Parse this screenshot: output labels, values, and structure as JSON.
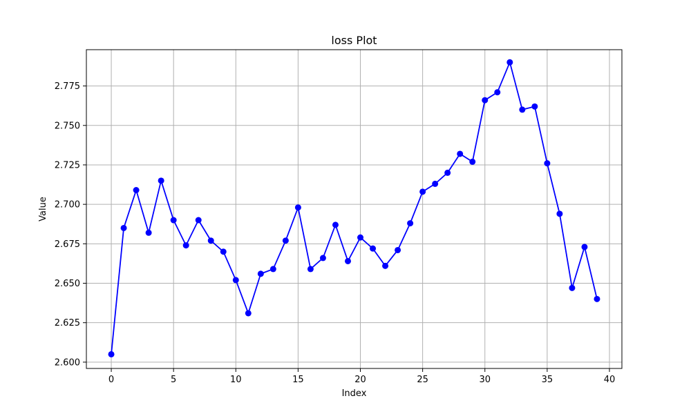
{
  "chart_data": {
    "type": "line",
    "title": "loss Plot",
    "xlabel": "Index",
    "ylabel": "Value",
    "xlim": [
      -2.0,
      41.0
    ],
    "ylim": [
      2.596,
      2.798
    ],
    "xticks": [
      0,
      5,
      10,
      15,
      20,
      25,
      30,
      35,
      40
    ],
    "yticks": [
      2.6,
      2.625,
      2.65,
      2.675,
      2.7,
      2.725,
      2.75,
      2.775
    ],
    "ytick_labels": [
      "2.600",
      "2.625",
      "2.650",
      "2.675",
      "2.700",
      "2.725",
      "2.750",
      "2.775"
    ],
    "grid": true,
    "color": "#0000ff",
    "marker": "circle",
    "x": [
      0,
      1,
      2,
      3,
      4,
      5,
      6,
      7,
      8,
      9,
      10,
      11,
      12,
      13,
      14,
      15,
      16,
      17,
      18,
      19,
      20,
      21,
      22,
      23,
      24,
      25,
      26,
      27,
      28,
      29,
      30,
      31,
      32,
      33,
      34,
      35,
      36,
      37,
      38,
      39
    ],
    "y": [
      2.605,
      2.685,
      2.709,
      2.682,
      2.715,
      2.69,
      2.674,
      2.69,
      2.677,
      2.67,
      2.652,
      2.631,
      2.656,
      2.659,
      2.677,
      2.698,
      2.659,
      2.666,
      2.687,
      2.664,
      2.679,
      2.672,
      2.661,
      2.671,
      2.688,
      2.708,
      2.713,
      2.72,
      2.732,
      2.727,
      2.766,
      2.771,
      2.79,
      2.76,
      2.762,
      2.726,
      2.694,
      2.647,
      2.673,
      2.64
    ]
  }
}
